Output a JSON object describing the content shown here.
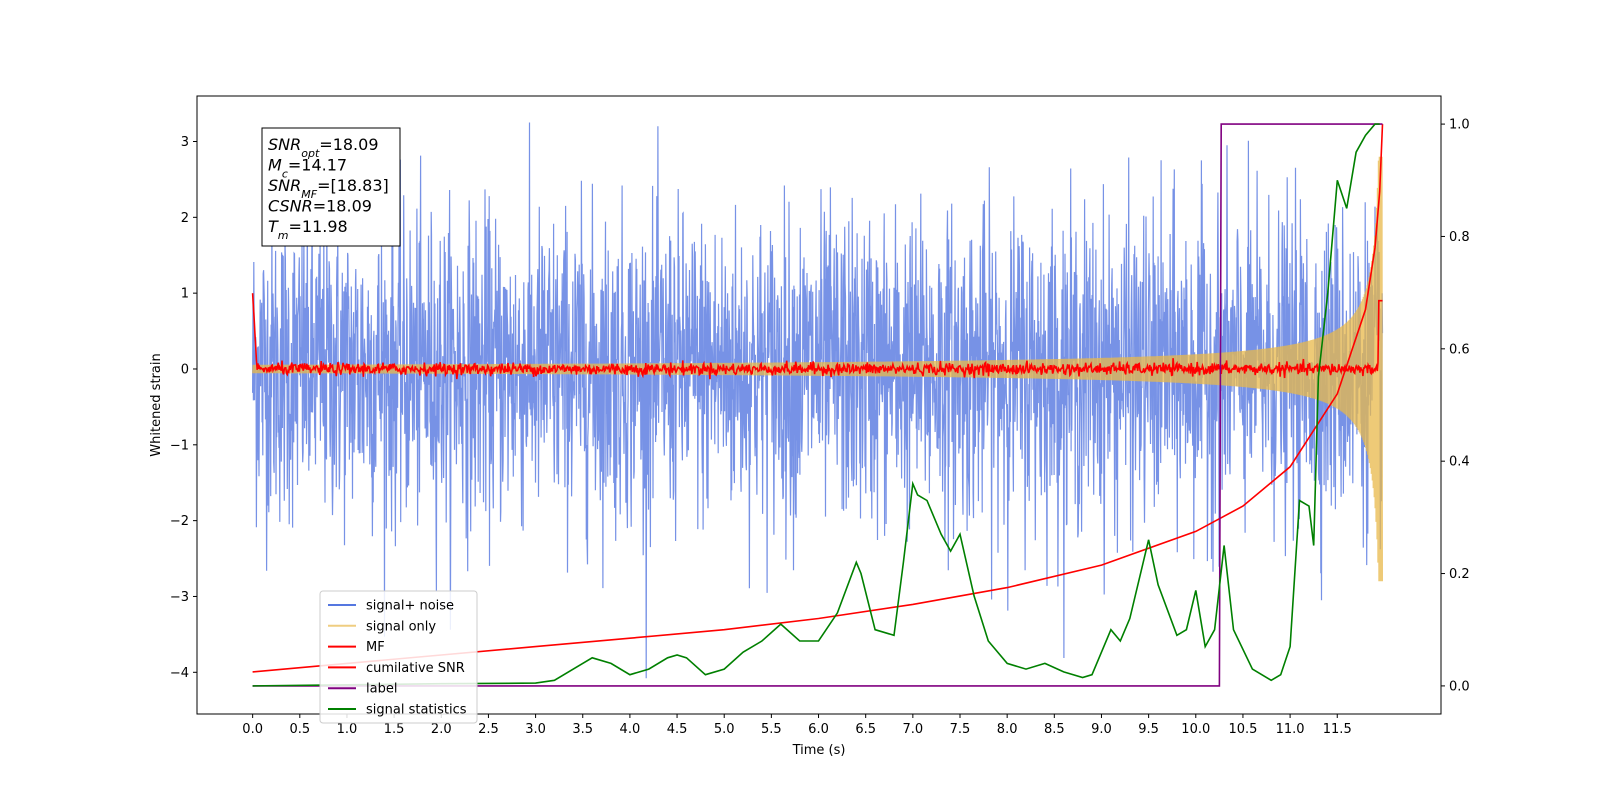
{
  "chart_data": {
    "type": "line",
    "xlabel": "Time (s)",
    "ylabel": "Whitened strain",
    "xlim": [
      -0.59,
      12.6
    ],
    "ylim": [
      -4.55,
      3.6
    ],
    "y2lim": [
      -0.05,
      1.05
    ],
    "x_ticks": [
      "0.0",
      "0.5",
      "1.0",
      "1.5",
      "2.0",
      "2.5",
      "3.0",
      "3.5",
      "4.0",
      "4.5",
      "5.0",
      "5.5",
      "6.0",
      "6.5",
      "7.0",
      "7.5",
      "8.0",
      "8.5",
      "9.0",
      "9.5",
      "10.0",
      "10.5",
      "11.0",
      "11.5"
    ],
    "y_ticks": [
      "3",
      "2",
      "1",
      "0",
      "−1",
      "−2",
      "−3",
      "−4"
    ],
    "y2_ticks": [
      "1.0",
      "0.8",
      "0.6",
      "0.4",
      "0.2",
      "0.0"
    ],
    "grid": false,
    "legend_position": "lower-left",
    "annotation": {
      "lines": [
        {
          "sym": "SNR",
          "sub": "opt",
          "value": "=18.09"
        },
        {
          "sym": "M",
          "sub": "c",
          "value": "=14.17"
        },
        {
          "sym": "SNR",
          "sub": "MF",
          "value": "=[18.83]"
        },
        {
          "sym": "CSNR",
          "sub": "",
          "value": "=18.09"
        },
        {
          "sym": "T",
          "sub": "m",
          "value": "=11.98"
        }
      ]
    },
    "series": [
      {
        "name": "signal+ noise",
        "axis": "left",
        "color": "#5577e0",
        "kind": "noise",
        "amplitude": 1.3,
        "x_range": [
          0,
          11.98
        ]
      },
      {
        "name": "signal only",
        "axis": "left",
        "color": "#e8b84a",
        "kind": "chirp",
        "x_range": [
          0,
          11.98
        ],
        "end_amplitude": 2.8
      },
      {
        "name": "MF",
        "axis": "left",
        "color": "#ff0000",
        "kind": "mf",
        "x_range": [
          0,
          11.98
        ]
      },
      {
        "name": "cumilative SNR",
        "axis": "right",
        "color": "#ff0000",
        "x": [
          0,
          1,
          2,
          3,
          4,
          5,
          6,
          7,
          8,
          9,
          10,
          10.5,
          11,
          11.5,
          11.8,
          11.9,
          11.95,
          11.98
        ],
        "y": [
          0.025,
          0.04,
          0.055,
          0.07,
          0.085,
          0.1,
          0.12,
          0.145,
          0.175,
          0.215,
          0.275,
          0.32,
          0.39,
          0.52,
          0.67,
          0.78,
          0.88,
          1.0
        ]
      },
      {
        "name": "label",
        "axis": "right",
        "color": "#800080",
        "x": [
          0,
          10.25,
          10.27,
          11.98
        ],
        "y": [
          0,
          0,
          1,
          1
        ]
      },
      {
        "name": "signal statistics",
        "axis": "right",
        "color": "#008000",
        "x": [
          0,
          1,
          2,
          3,
          3.2,
          3.5,
          3.6,
          3.8,
          4.0,
          4.2,
          4.4,
          4.5,
          4.6,
          4.8,
          5.0,
          5.2,
          5.4,
          5.6,
          5.8,
          6.0,
          6.2,
          6.4,
          6.45,
          6.6,
          6.8,
          6.9,
          7.0,
          7.05,
          7.15,
          7.3,
          7.4,
          7.5,
          7.65,
          7.8,
          8.0,
          8.2,
          8.4,
          8.6,
          8.8,
          8.9,
          9.1,
          9.2,
          9.3,
          9.5,
          9.6,
          9.8,
          9.9,
          10.0,
          10.1,
          10.2,
          10.3,
          10.4,
          10.6,
          10.8,
          10.9,
          11.0,
          11.1,
          11.2,
          11.25,
          11.3,
          11.4,
          11.5,
          11.6,
          11.7,
          11.8,
          11.9,
          11.95
        ],
        "y": [
          0.0,
          0.002,
          0.004,
          0.005,
          0.01,
          0.04,
          0.05,
          0.04,
          0.02,
          0.03,
          0.05,
          0.055,
          0.05,
          0.02,
          0.03,
          0.06,
          0.08,
          0.11,
          0.08,
          0.08,
          0.13,
          0.22,
          0.2,
          0.1,
          0.09,
          0.22,
          0.36,
          0.34,
          0.33,
          0.27,
          0.24,
          0.27,
          0.16,
          0.08,
          0.04,
          0.03,
          0.04,
          0.025,
          0.015,
          0.02,
          0.1,
          0.08,
          0.12,
          0.26,
          0.18,
          0.09,
          0.1,
          0.17,
          0.07,
          0.1,
          0.25,
          0.1,
          0.03,
          0.01,
          0.02,
          0.07,
          0.33,
          0.32,
          0.25,
          0.55,
          0.7,
          0.9,
          0.85,
          0.95,
          0.98,
          1.0,
          1.0
        ]
      }
    ]
  }
}
